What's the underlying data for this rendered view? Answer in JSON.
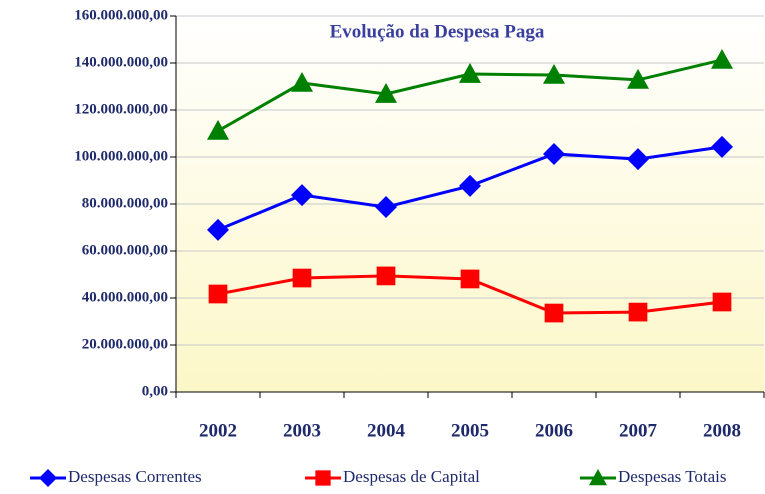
{
  "chart_data": {
    "type": "line",
    "title": "Evolução da Despesa Paga",
    "categories": [
      "2002",
      "2003",
      "2004",
      "2005",
      "2006",
      "2007",
      "2008"
    ],
    "series": [
      {
        "name": "Despesas Correntes",
        "color": "#0000ff",
        "marker": "diamond",
        "values": [
          69000000,
          83800000,
          78700000,
          87700000,
          101300000,
          99100000,
          104300000
        ]
      },
      {
        "name": "Despesas de Capital",
        "color": "#ff0000",
        "marker": "square",
        "values": [
          41700000,
          48500000,
          49400000,
          48100000,
          33600000,
          34000000,
          38300000
        ]
      },
      {
        "name": "Despesas Totais",
        "color": "#008000",
        "marker": "triangle",
        "values": [
          111100000,
          131500000,
          126800000,
          135300000,
          134900000,
          132800000,
          141300000
        ]
      }
    ],
    "ylim": [
      0,
      160000000
    ],
    "yticks": [
      {
        "value": 0,
        "label": "0,00"
      },
      {
        "value": 20000000,
        "label": "20.000.000,00"
      },
      {
        "value": 40000000,
        "label": "40.000.000,00"
      },
      {
        "value": 60000000,
        "label": "60.000.000,00"
      },
      {
        "value": 80000000,
        "label": "80.000.000,00"
      },
      {
        "value": 100000000,
        "label": "100.000.000,00"
      },
      {
        "value": 120000000,
        "label": "120.000.000,00"
      },
      {
        "value": 140000000,
        "label": "140.000.000,00"
      },
      {
        "value": 160000000,
        "label": "160.000.000,00"
      }
    ],
    "grid": true,
    "legend": "bottom"
  }
}
